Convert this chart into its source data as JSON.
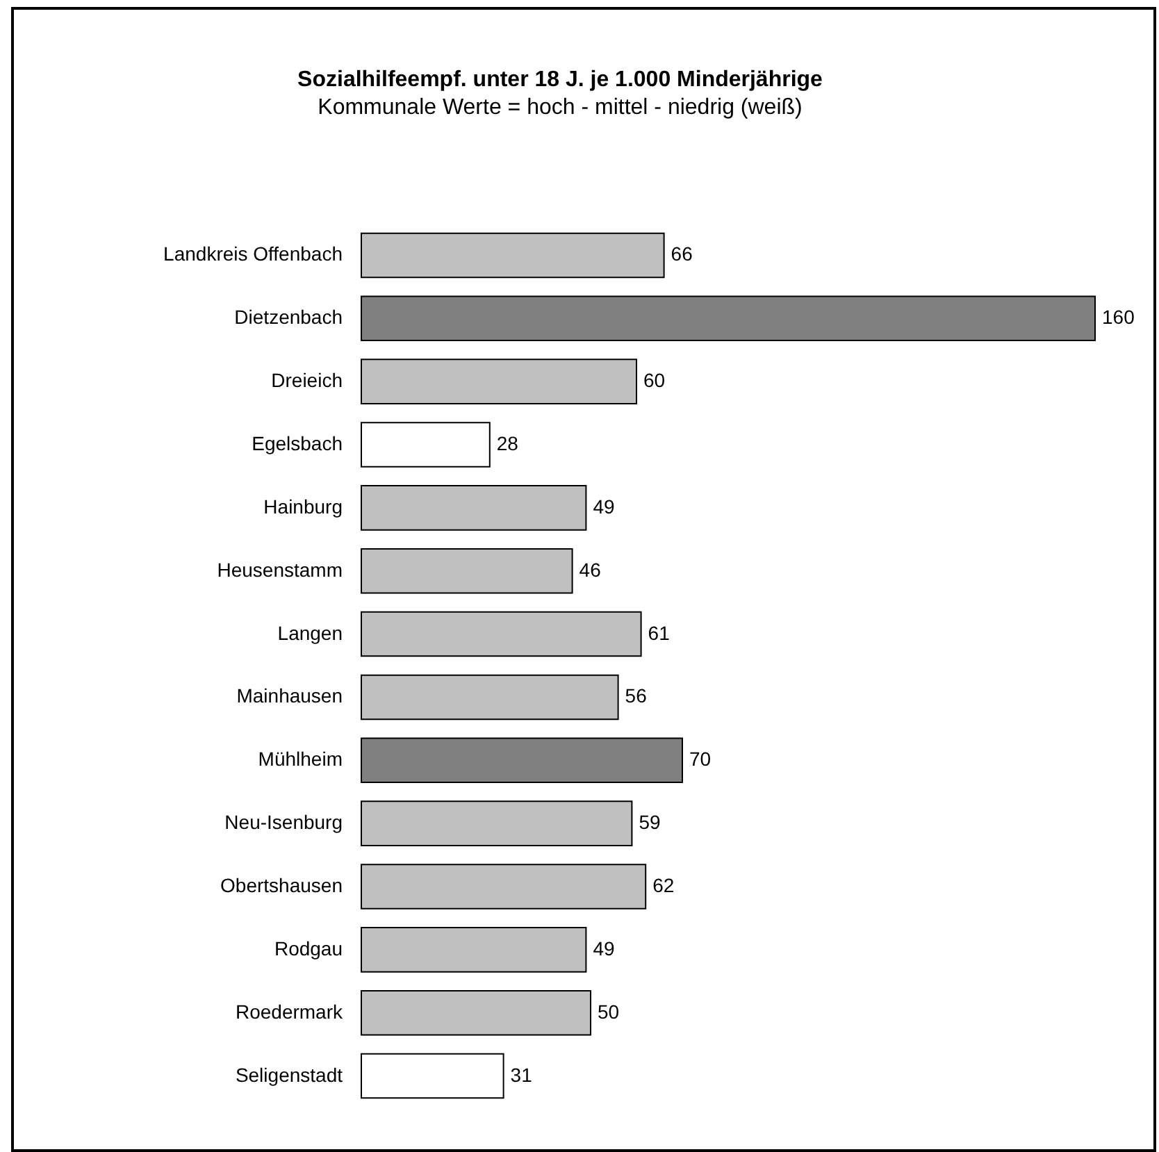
{
  "chart_data": {
    "type": "bar",
    "orientation": "horizontal",
    "title": "Sozialhilfeempf. unter 18 J. je 1.000 Minderjährige",
    "subtitle": "Kommunale Werte = hoch - mittel - niedrig (weiß)",
    "categories": [
      "Landkreis Offenbach",
      null,
      "Dietzenbach",
      "Dreieich",
      "Egelsbach",
      "Hainburg",
      "Heusenstamm",
      "Langen",
      "Mainhausen",
      "Mühlheim",
      "Neu-Isenburg",
      "Obertshausen",
      "Rodgau",
      "Roedermark",
      "Seligenstadt"
    ],
    "values": [
      66,
      null,
      160,
      60,
      28,
      49,
      46,
      61,
      56,
      70,
      59,
      62,
      49,
      50,
      31
    ],
    "colors": [
      "#c0c0c0",
      null,
      "#808080",
      "#c0c0c0",
      "#ffffff",
      "#c0c0c0",
      "#c0c0c0",
      "#c0c0c0",
      "#c0c0c0",
      "#808080",
      "#c0c0c0",
      "#c0c0c0",
      "#c0c0c0",
      "#c0c0c0",
      "#ffffff"
    ],
    "data_labels": true
  }
}
